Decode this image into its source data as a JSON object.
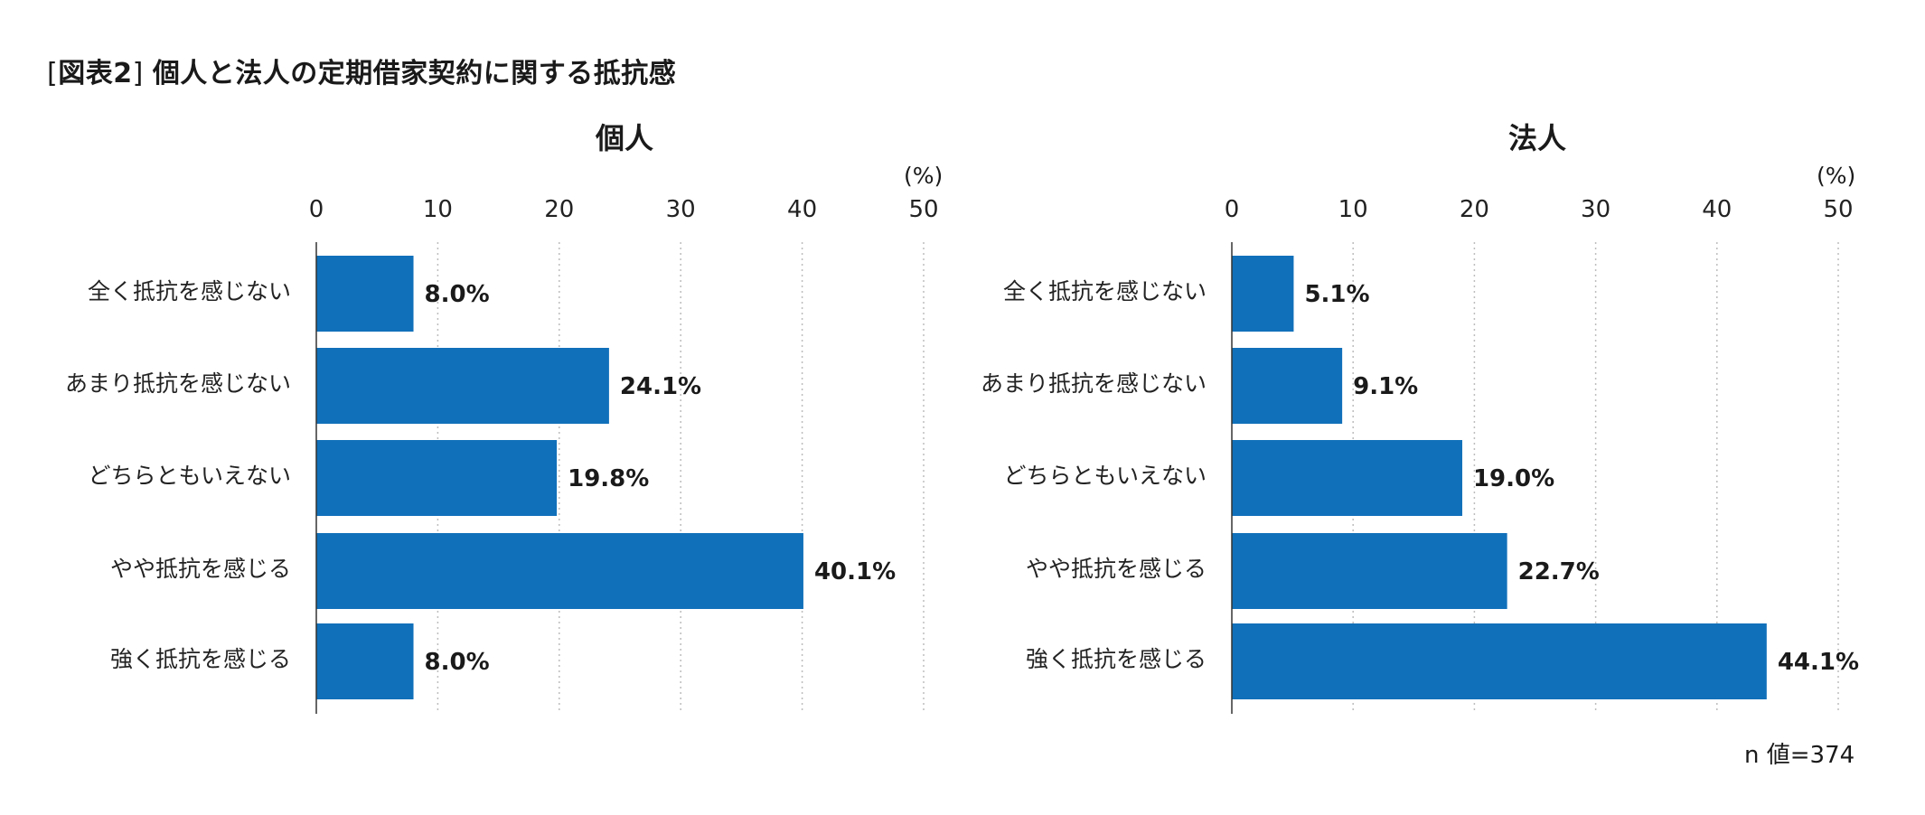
{
  "figure": {
    "label": "図表2",
    "title": "個人と法人の定期借家契約に関する抵抗感",
    "note": "n 値=374",
    "bar_color": "#1170ba"
  },
  "chart_data": [
    {
      "type": "bar",
      "orientation": "horizontal",
      "title": "個人",
      "unit": "(%)",
      "xlim": [
        0,
        50
      ],
      "ticks": [
        0,
        10,
        20,
        30,
        40,
        50
      ],
      "grid": true,
      "categories": [
        "全く抵抗を感じない",
        "あまり抵抗を感じない",
        "どちらともいえない",
        "やや抵抗を感じる",
        "強く抵抗を感じる"
      ],
      "values": [
        8.0,
        24.1,
        19.8,
        40.1,
        8.0
      ],
      "value_labels": [
        "8.0%",
        "24.1%",
        "19.8%",
        "40.1%",
        "8.0%"
      ]
    },
    {
      "type": "bar",
      "orientation": "horizontal",
      "title": "法人",
      "unit": "(%)",
      "xlim": [
        0,
        50
      ],
      "ticks": [
        0,
        10,
        20,
        30,
        40,
        50
      ],
      "grid": true,
      "categories": [
        "全く抵抗を感じない",
        "あまり抵抗を感じない",
        "どちらともいえない",
        "やや抵抗を感じる",
        "強く抵抗を感じる"
      ],
      "values": [
        5.1,
        9.1,
        19.0,
        22.7,
        44.1
      ],
      "value_labels": [
        "5.1%",
        "9.1%",
        "19.0%",
        "22.7%",
        "44.1%"
      ]
    }
  ]
}
